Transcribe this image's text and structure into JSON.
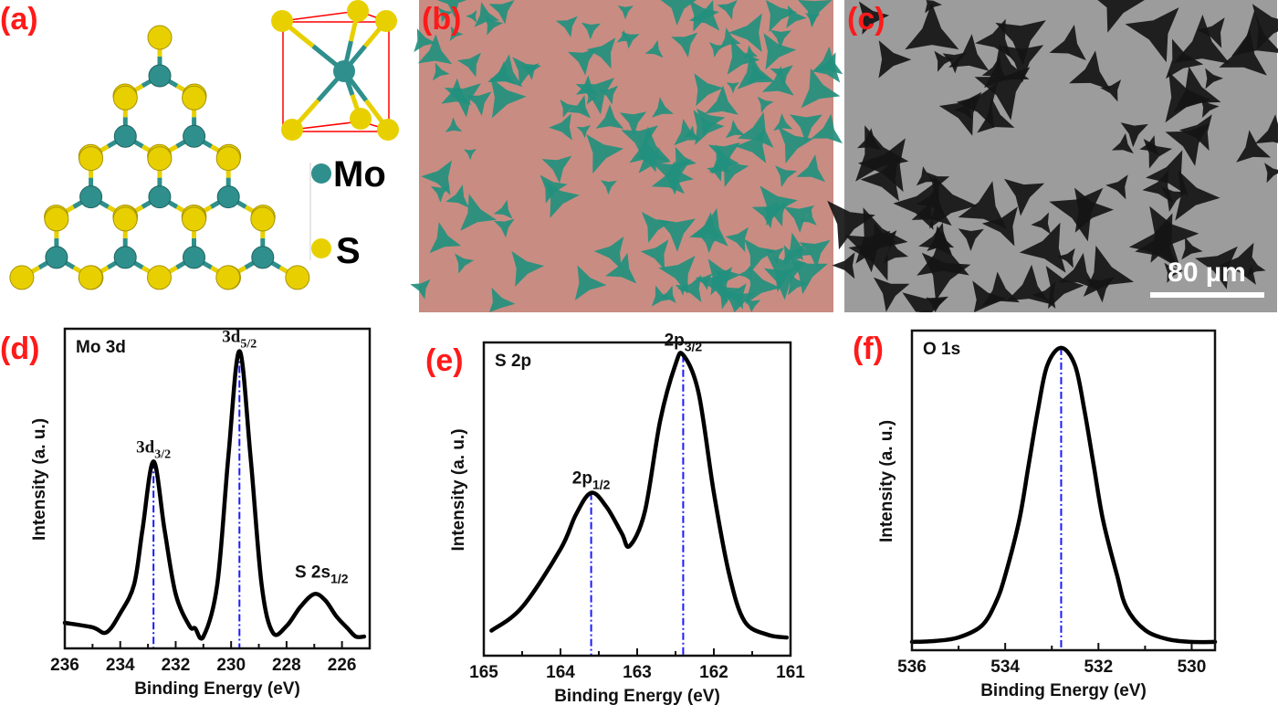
{
  "panels": {
    "a": {
      "label": "(a)",
      "legend": [
        {
          "element": "Mo",
          "color": "#2f8f8c"
        },
        {
          "element": "S",
          "color": "#e8d000"
        }
      ],
      "cell_color": "#ff0000"
    },
    "b": {
      "label": "(b)",
      "background": "#c98c82",
      "flake_color": "#23907e"
    },
    "c": {
      "label": "(c)",
      "background": "#9c9c9c",
      "flake_color": "#151515",
      "scale_bar": "80 µm"
    },
    "d": {
      "label": "(d)"
    },
    "e": {
      "label": "(e)"
    },
    "f": {
      "label": "(f)"
    }
  },
  "chart_data": [
    {
      "panel": "d",
      "type": "line",
      "title": "Mo 3d",
      "xlabel": "Binding Energy (eV)",
      "ylabel": "Intensity (a. u.)",
      "xlim": [
        236,
        225
      ],
      "x_reversed": true,
      "ylim": [
        0,
        1
      ],
      "xticks": [
        236,
        234,
        232,
        230,
        228,
        226
      ],
      "minor_step": 1,
      "x": [
        236,
        235,
        234.5,
        234,
        233.5,
        233.2,
        232.8,
        232.4,
        232,
        231.5,
        231.3,
        231,
        230.5,
        230.1,
        229.7,
        229.3,
        228.9,
        228.5,
        228,
        227.5,
        227,
        226.6,
        226.2,
        225.8,
        225.5,
        225.2
      ],
      "y": [
        0.08,
        0.066,
        0.05,
        0.11,
        0.2,
        0.37,
        0.585,
        0.37,
        0.17,
        0.07,
        0.063,
        0.037,
        0.2,
        0.6,
        0.93,
        0.6,
        0.2,
        0.05,
        0.07,
        0.13,
        0.17,
        0.15,
        0.1,
        0.063,
        0.037,
        0.037
      ],
      "peaks": [
        {
          "x": 232.8,
          "y": 0.585,
          "main": "3d",
          "sub": "3/2",
          "style": "serif"
        },
        {
          "x": 229.7,
          "y": 0.93,
          "main": "3d",
          "sub": "5/2",
          "style": "serif"
        }
      ],
      "annotations": [
        {
          "x": 227,
          "y": 0.17,
          "main": "S 2s",
          "sub": "1/2"
        }
      ],
      "line_color": "#000000",
      "marker_line_color": "#1a1aff"
    },
    {
      "panel": "e",
      "type": "line",
      "title": "S 2p",
      "xlabel": "Binding Energy (eV)",
      "ylabel": "Intensity (a. u.)",
      "xlim": [
        165,
        161
      ],
      "x_reversed": true,
      "ylim": [
        0,
        1
      ],
      "xticks": [
        165,
        164,
        163,
        162,
        161
      ],
      "minor_step": 0.5,
      "x": [
        164.9,
        164.5,
        164,
        163.8,
        163.6,
        163.4,
        163.2,
        163.1,
        162.9,
        162.7,
        162.5,
        162.4,
        162.2,
        162,
        161.8,
        161.6,
        161.3,
        161.05
      ],
      "y": [
        0.08,
        0.155,
        0.34,
        0.45,
        0.52,
        0.475,
        0.39,
        0.35,
        0.46,
        0.75,
        0.93,
        0.96,
        0.84,
        0.52,
        0.26,
        0.11,
        0.067,
        0.058
      ],
      "peaks": [
        {
          "x": 163.6,
          "y": 0.52,
          "main": "2p",
          "sub": "1/2",
          "style": "sans"
        },
        {
          "x": 162.4,
          "y": 0.96,
          "main": "2p",
          "sub": "3/2",
          "style": "sans"
        }
      ],
      "line_color": "#000000",
      "marker_line_color": "#1a1aff"
    },
    {
      "panel": "f",
      "type": "line",
      "title": "O 1s",
      "xlabel": "Binding Energy (eV)",
      "ylabel": "Intensity (a. u.)",
      "xlim": [
        536,
        529.5
      ],
      "x_reversed": true,
      "ylim": [
        0,
        1
      ],
      "xticks": [
        536,
        534,
        532,
        530
      ],
      "minor_step": 1,
      "x": [
        536,
        535.5,
        535,
        534.5,
        534.2,
        534,
        533.7,
        533.5,
        533.3,
        533.1,
        532.8,
        532.5,
        532.3,
        532.1,
        531.9,
        531.6,
        531.4,
        531,
        530.5,
        530,
        529.5
      ],
      "y": [
        0.026,
        0.029,
        0.04,
        0.077,
        0.15,
        0.234,
        0.406,
        0.577,
        0.75,
        0.89,
        0.946,
        0.89,
        0.75,
        0.577,
        0.406,
        0.234,
        0.134,
        0.063,
        0.034,
        0.026,
        0.026
      ],
      "peaks": [
        {
          "x": 532.8,
          "y": 0.946,
          "main": "",
          "sub": "",
          "style": "sans"
        }
      ],
      "line_color": "#000000",
      "marker_line_color": "#1a1aff"
    }
  ]
}
